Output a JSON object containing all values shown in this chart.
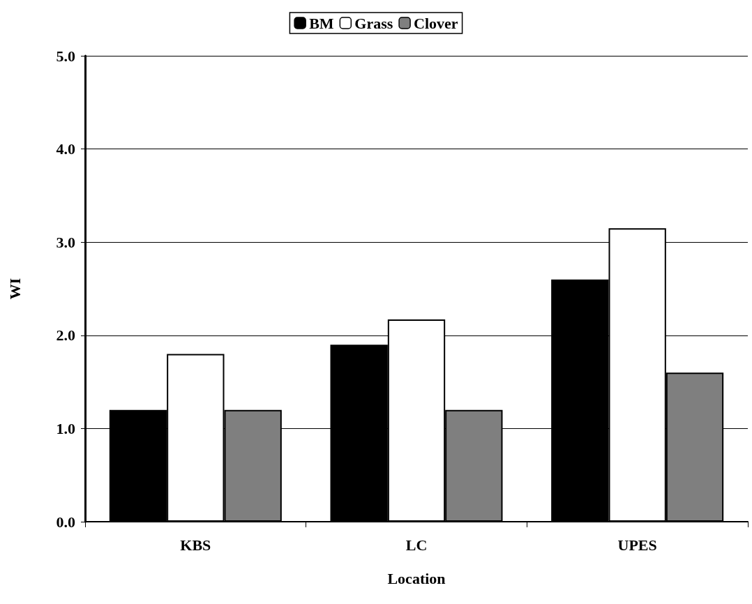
{
  "chart_data": {
    "type": "bar",
    "xlabel": "Location",
    "ylabel": "WI",
    "categories": [
      "KBS",
      "LC",
      "UPES"
    ],
    "series": [
      {
        "name": "BM",
        "color": "#000000",
        "values": [
          1.2,
          1.9,
          2.6
        ]
      },
      {
        "name": "Grass",
        "color": "#ffffff",
        "values": [
          1.8,
          2.17,
          3.15
        ]
      },
      {
        "name": "Clover",
        "color": "#7f7f7f",
        "values": [
          1.2,
          1.2,
          1.6
        ]
      }
    ],
    "ylim": [
      0,
      5
    ],
    "yticks": [
      {
        "value": 0,
        "label": "0.0"
      },
      {
        "value": 1,
        "label": "1.0"
      },
      {
        "value": 2,
        "label": "2.0"
      },
      {
        "value": 3,
        "label": "3.0"
      },
      {
        "value": 4,
        "label": "4.0"
      },
      {
        "value": 5,
        "label": "5.0"
      }
    ],
    "grid": "y",
    "legend": "top"
  }
}
